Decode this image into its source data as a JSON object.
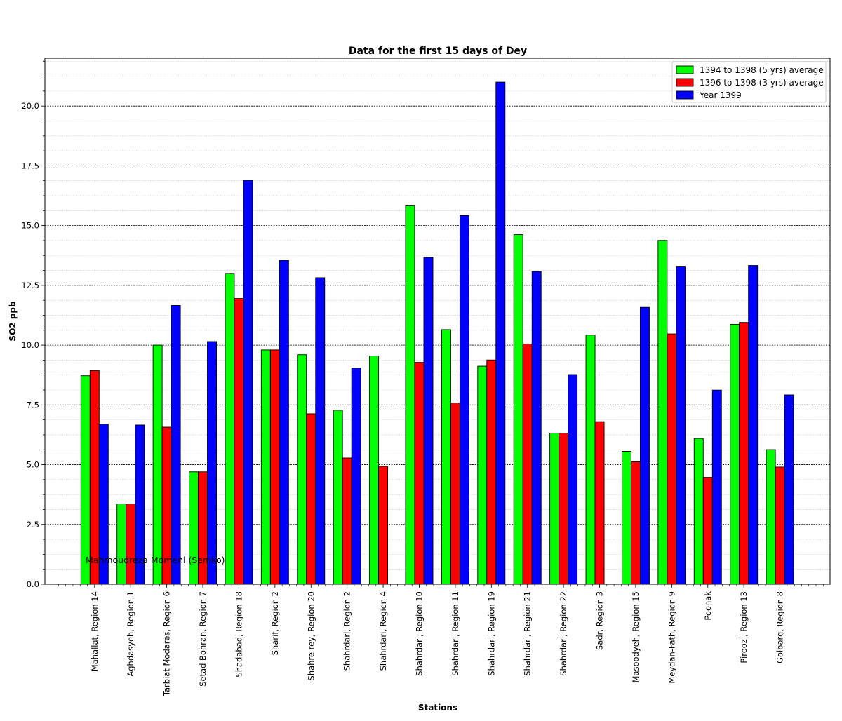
{
  "chart_data": {
    "type": "bar",
    "title": "Data for the first 15 days of Dey",
    "xlabel": "Stations",
    "ylabel": "SO2 ppb",
    "ylim": [
      0,
      22
    ],
    "yticks": [
      "0.0",
      "2.5",
      "5.0",
      "7.5",
      "10.0",
      "12.5",
      "15.0",
      "17.5",
      "20.0"
    ],
    "grid": true,
    "legend_position": "top-right",
    "annotation": "Mahmoudreza Momeni (Semko)",
    "categories": [
      "Mahallat, Region 14",
      "Aghdasyeh, Region 1",
      "Tarbiat Modares, Region 6",
      "Setad Bohran, Region 7",
      "Shadabad, Region 18",
      "Sharif, Region 2",
      "Shahre rey, Region 20",
      "Shahrdari, Region 2",
      "Shahrdari, Region 4",
      "Shahrdari, Region 10",
      "Shahrdari, Region 11",
      "Shahrdari, Region 19",
      "Shahrdari, Region 21",
      "Shahrdari, Region 22",
      "Sadr, Region 3",
      "Masoodyeh, Region 15",
      "Meydan-Fath, Region 9",
      "Poonak",
      "Piroozi, Region 13",
      "Golbarg, Region 8"
    ],
    "series": [
      {
        "name": "1394 to 1398 (5 yrs) average",
        "color": "#00ff00",
        "values": [
          8.72,
          3.36,
          10.0,
          4.7,
          13.0,
          9.8,
          9.6,
          7.28,
          9.55,
          15.83,
          10.65,
          9.12,
          14.62,
          6.32,
          10.42,
          5.56,
          14.38,
          6.1,
          10.87,
          5.63
        ]
      },
      {
        "name": "1396 to 1398 (3 yrs) average",
        "color": "#ff0000",
        "values": [
          8.93,
          3.36,
          6.57,
          4.7,
          11.95,
          9.8,
          7.13,
          5.28,
          4.93,
          9.28,
          7.58,
          9.38,
          10.05,
          6.32,
          6.8,
          5.12,
          10.47,
          4.47,
          10.95,
          4.9
        ]
      },
      {
        "name": "Year 1399",
        "color": "#0000ff",
        "values": [
          6.7,
          6.66,
          11.66,
          10.15,
          16.9,
          13.55,
          12.82,
          9.05,
          null,
          13.67,
          15.42,
          21.0,
          13.08,
          8.77,
          null,
          11.58,
          13.3,
          8.12,
          13.33,
          7.92
        ]
      }
    ]
  }
}
